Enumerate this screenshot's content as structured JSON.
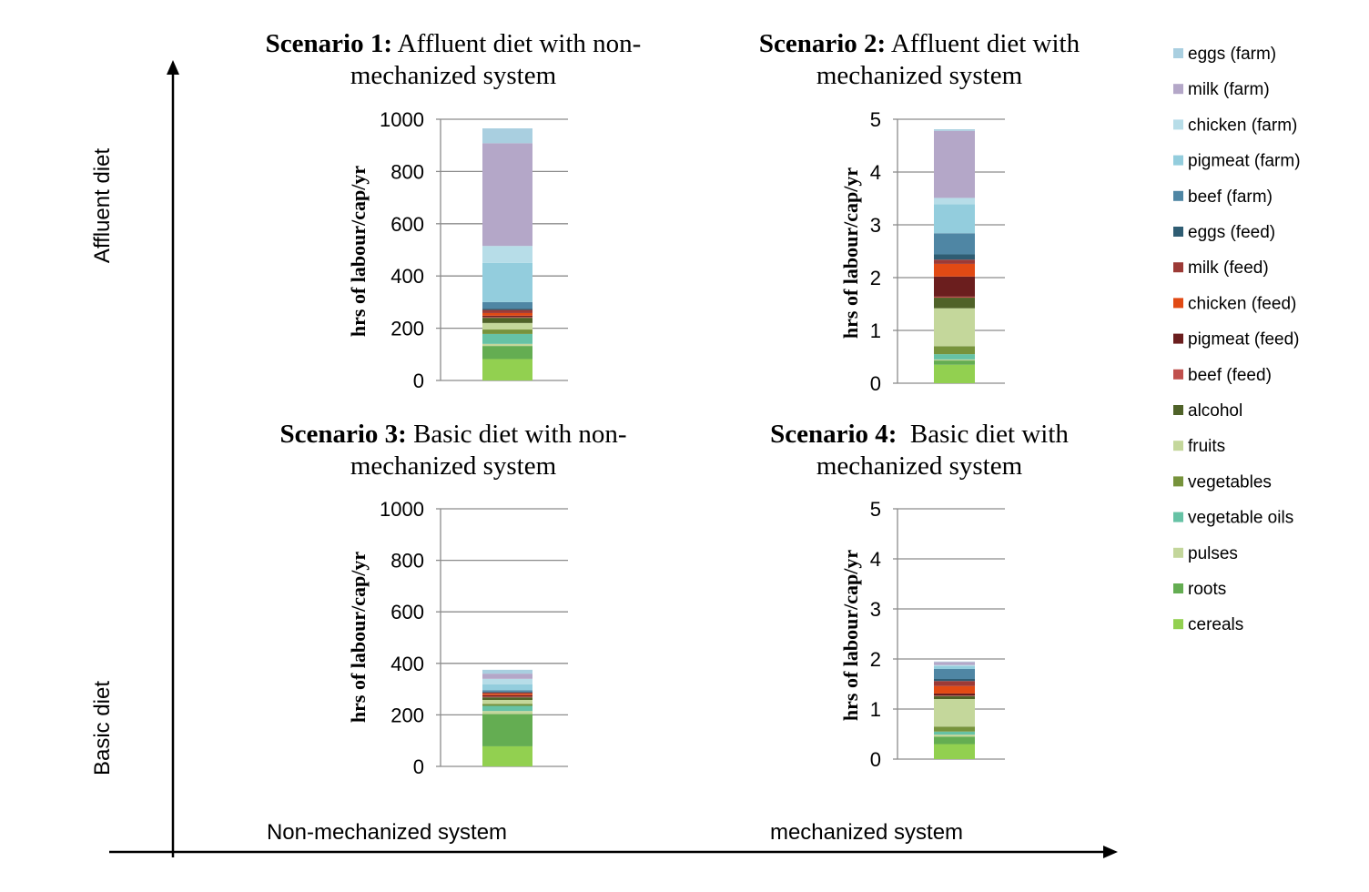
{
  "framework": {
    "y_axis_top_label": "Affluent diet",
    "y_axis_bottom_label": "Basic diet",
    "x_axis_left_label": "Non-mechanized system",
    "x_axis_right_label": "mechanized system"
  },
  "legend": {
    "placement": "right",
    "items": [
      {
        "label": "eggs (farm)",
        "color": "#a9cfe0"
      },
      {
        "label": "milk (farm)",
        "color": "#b4a7c8"
      },
      {
        "label": "chicken (farm)",
        "color": "#b7dde8"
      },
      {
        "label": "pigmeat (farm)",
        "color": "#93cddd"
      },
      {
        "label": "beef (farm)",
        "color": "#4f86a4"
      },
      {
        "label": "eggs (feed)",
        "color": "#2f5d73"
      },
      {
        "label": "milk (feed)",
        "color": "#9c3a36"
      },
      {
        "label": "chicken (feed)",
        "color": "#e14a14"
      },
      {
        "label": "pigmeat (feed)",
        "color": "#6b1e1e"
      },
      {
        "label": "beef (feed)",
        "color": "#c0504d"
      },
      {
        "label": "alcohol",
        "color": "#4f6228"
      },
      {
        "label": "fruits",
        "color": "#c4d79b"
      },
      {
        "label": "vegetables",
        "color": "#77933c"
      },
      {
        "label": "vegetable oils",
        "color": "#66c2a5"
      },
      {
        "label": "pulses",
        "color": "#c3d69b"
      },
      {
        "label": "roots",
        "color": "#64ad52"
      },
      {
        "label": "cereals",
        "color": "#92d050"
      }
    ]
  },
  "chart_data": [
    {
      "type": "bar",
      "stacked": true,
      "title_bold": "Scenario 1:",
      "title_rest": " Affluent diet with non-",
      "title_line2": "mechanized system",
      "ylabel": "hrs of labour/cap/yr",
      "ylim": [
        0,
        1000
      ],
      "yticks": [
        "0",
        "200",
        "400",
        "600",
        "800",
        "1000"
      ],
      "grid": true,
      "series": [
        {
          "name": "cereals",
          "value": 82
        },
        {
          "name": "roots",
          "value": 50
        },
        {
          "name": "pulses",
          "value": 8
        },
        {
          "name": "vegetable oils",
          "value": 38
        },
        {
          "name": "vegetables",
          "value": 17
        },
        {
          "name": "fruits",
          "value": 25
        },
        {
          "name": "alcohol",
          "value": 20
        },
        {
          "name": "beef (feed)",
          "value": 3
        },
        {
          "name": "pigmeat (feed)",
          "value": 5
        },
        {
          "name": "chicken (feed)",
          "value": 10
        },
        {
          "name": "milk (feed)",
          "value": 12
        },
        {
          "name": "eggs (feed)",
          "value": 5
        },
        {
          "name": "beef (farm)",
          "value": 25
        },
        {
          "name": "pigmeat (farm)",
          "value": 150
        },
        {
          "name": "chicken (farm)",
          "value": 65
        },
        {
          "name": "milk (farm)",
          "value": 393
        },
        {
          "name": "eggs (farm)",
          "value": 57
        }
      ]
    },
    {
      "type": "bar",
      "stacked": true,
      "title_bold": "Scenario 2:",
      "title_rest": " Affluent diet with",
      "title_line2": "mechanized system",
      "ylabel": "hrs of labour/cap/yr",
      "ylim": [
        0,
        5
      ],
      "yticks": [
        "0",
        "1",
        "2",
        "3",
        "4",
        "5"
      ],
      "grid": true,
      "series": [
        {
          "name": "cereals",
          "value": 0.35
        },
        {
          "name": "roots",
          "value": 0.08
        },
        {
          "name": "pulses",
          "value": 0.02
        },
        {
          "name": "vegetable oils",
          "value": 0.1
        },
        {
          "name": "vegetables",
          "value": 0.15
        },
        {
          "name": "fruits",
          "value": 0.72
        },
        {
          "name": "alcohol",
          "value": 0.2
        },
        {
          "name": "beef (feed)",
          "value": 0.02
        },
        {
          "name": "pigmeat (feed)",
          "value": 0.38
        },
        {
          "name": "chicken (feed)",
          "value": 0.24
        },
        {
          "name": "milk (feed)",
          "value": 0.08
        },
        {
          "name": "eggs (feed)",
          "value": 0.1
        },
        {
          "name": "beef (farm)",
          "value": 0.4
        },
        {
          "name": "pigmeat (farm)",
          "value": 0.55
        },
        {
          "name": "chicken (farm)",
          "value": 0.12
        },
        {
          "name": "milk (farm)",
          "value": 1.27
        },
        {
          "name": "eggs (farm)",
          "value": 0.03
        }
      ]
    },
    {
      "type": "bar",
      "stacked": true,
      "title_bold": "Scenario 3:",
      "title_rest": " Basic diet with non-",
      "title_line2": "mechanized system",
      "ylabel": "hrs of labour/cap/yr",
      "ylim": [
        0,
        1000
      ],
      "yticks": [
        "0",
        "200",
        "400",
        "600",
        "800",
        "1000"
      ],
      "grid": true,
      "series": [
        {
          "name": "cereals",
          "value": 78
        },
        {
          "name": "roots",
          "value": 125
        },
        {
          "name": "pulses",
          "value": 12
        },
        {
          "name": "vegetable oils",
          "value": 20
        },
        {
          "name": "vegetables",
          "value": 8
        },
        {
          "name": "fruits",
          "value": 15
        },
        {
          "name": "alcohol",
          "value": 10
        },
        {
          "name": "beef (feed)",
          "value": 3
        },
        {
          "name": "pigmeat (feed)",
          "value": 5
        },
        {
          "name": "chicken (feed)",
          "value": 6
        },
        {
          "name": "milk (feed)",
          "value": 5
        },
        {
          "name": "eggs (feed)",
          "value": 3
        },
        {
          "name": "beef (farm)",
          "value": 6
        },
        {
          "name": "pigmeat (farm)",
          "value": 22
        },
        {
          "name": "chicken (farm)",
          "value": 22
        },
        {
          "name": "milk (farm)",
          "value": 20
        },
        {
          "name": "eggs (farm)",
          "value": 15
        }
      ]
    },
    {
      "type": "bar",
      "stacked": true,
      "title_bold": "Scenario 4:",
      "title_rest": "  Basic diet with",
      "title_line2": "mechanized system",
      "ylabel": "hrs of labour/cap/yr",
      "ylim": [
        0,
        5
      ],
      "yticks": [
        "0",
        "1",
        "2",
        "3",
        "4",
        "5"
      ],
      "grid": true,
      "series": [
        {
          "name": "cereals",
          "value": 0.3
        },
        {
          "name": "roots",
          "value": 0.15
        },
        {
          "name": "pulses",
          "value": 0.04
        },
        {
          "name": "vegetable oils",
          "value": 0.06
        },
        {
          "name": "vegetables",
          "value": 0.1
        },
        {
          "name": "fruits",
          "value": 0.55
        },
        {
          "name": "alcohol",
          "value": 0.06
        },
        {
          "name": "beef (feed)",
          "value": 0.01
        },
        {
          "name": "pigmeat (feed)",
          "value": 0.04
        },
        {
          "name": "chicken (feed)",
          "value": 0.15
        },
        {
          "name": "milk (feed)",
          "value": 0.1
        },
        {
          "name": "eggs (feed)",
          "value": 0.04
        },
        {
          "name": "beef (farm)",
          "value": 0.2
        },
        {
          "name": "pigmeat (farm)",
          "value": 0.06
        },
        {
          "name": "chicken (farm)",
          "value": 0.02
        },
        {
          "name": "milk (farm)",
          "value": 0.06
        },
        {
          "name": "eggs (farm)",
          "value": 0.01
        }
      ]
    }
  ]
}
